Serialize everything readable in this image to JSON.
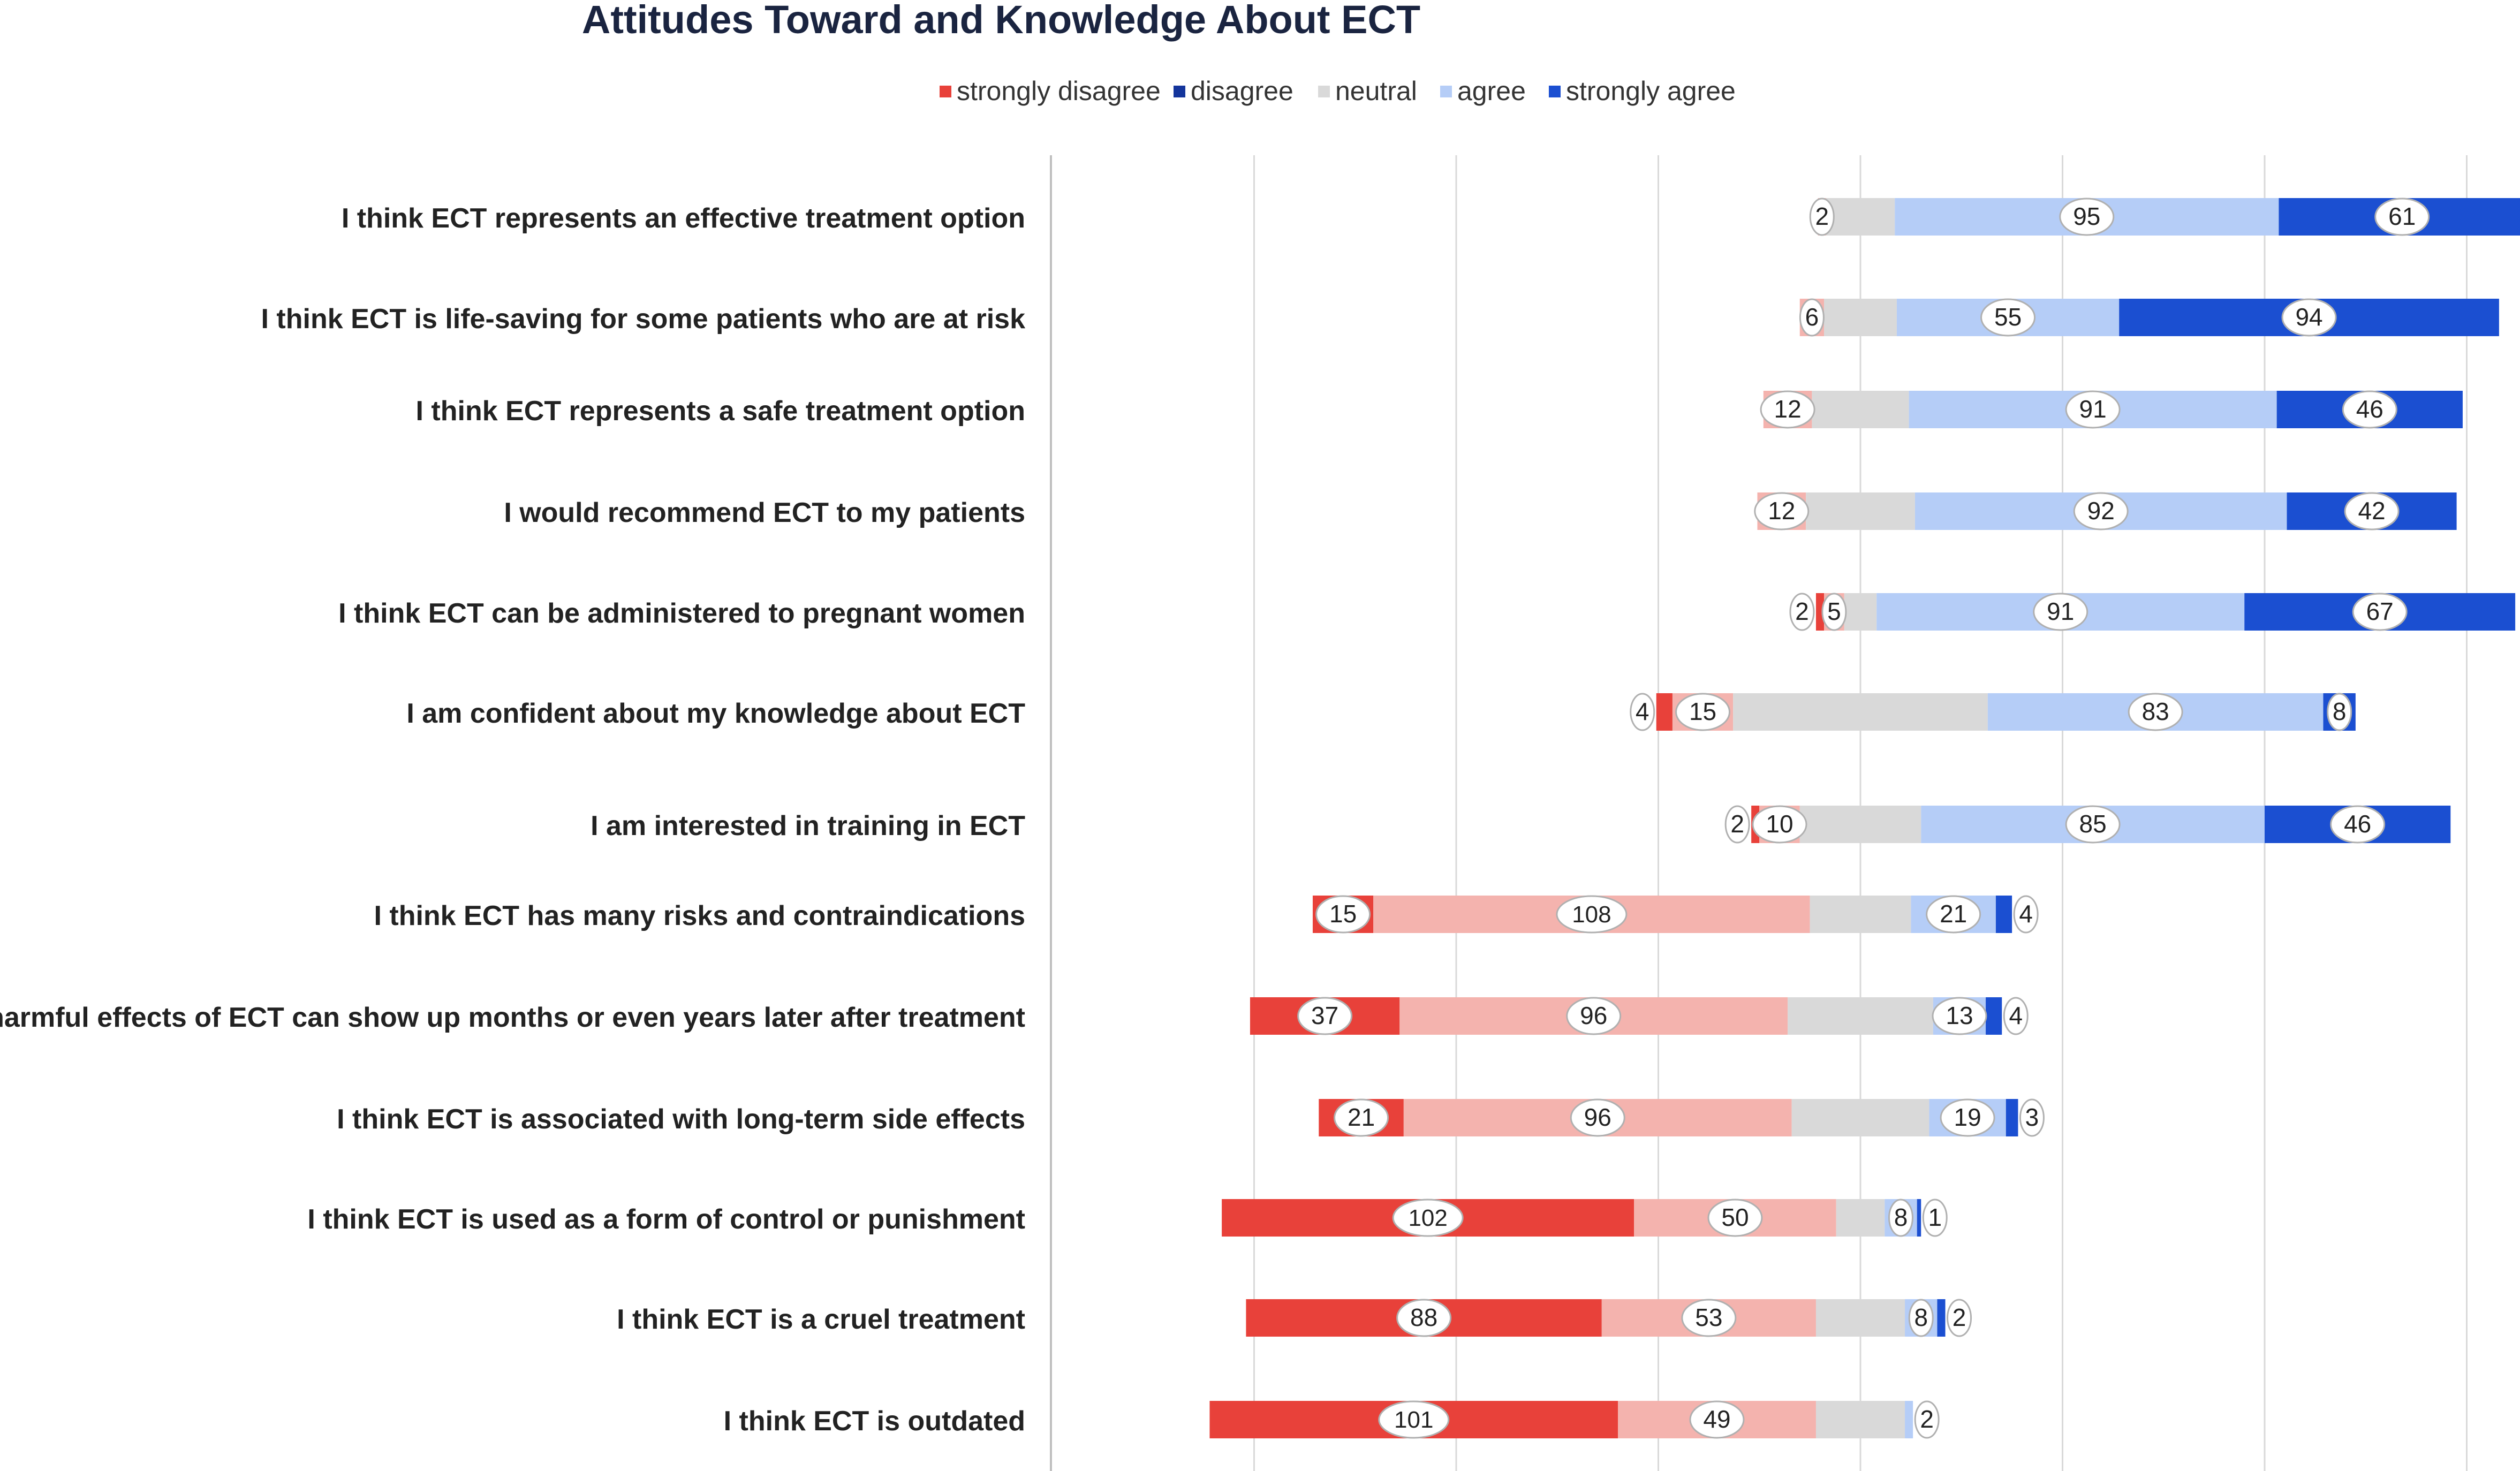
{
  "chart_data": {
    "type": "bar",
    "subtype": "diverging-stacked-horizontal",
    "title": "Attitudes Toward and Knowledge About ECT",
    "xlabel": "",
    "ylabel": "",
    "grid": true,
    "legend_position": "top",
    "series": [
      {
        "name": "strongly disagree",
        "color": "#e8413a"
      },
      {
        "name": "disagree",
        "color": "#14359c"
      },
      {
        "name": "neutral",
        "color": "#d9d9d9"
      },
      {
        "name": "agree",
        "color": "#b5cdf7"
      },
      {
        "name": "strongly agree",
        "color": "#1b4fd1"
      }
    ],
    "plot_series": [
      {
        "name": "strongly disagree",
        "color": "#e8413a"
      },
      {
        "name": "disagree",
        "color": "#f4b3ae"
      },
      {
        "name": "neutral",
        "color": "#d9d9d9"
      },
      {
        "name": "agree",
        "color": "#b5cdf7"
      },
      {
        "name": "strongly agree",
        "color": "#1b4fd1"
      }
    ],
    "categories": [
      "I think ECT represents an effective treatment option",
      "I think ECT is life-saving for some patients who are at risk",
      "I think ECT represents a safe treatment option",
      "I would recommend ECT to my patients",
      "I think ECT can be administered to pregnant women",
      "I am confident about my knowledge about ECT",
      "I am interested in training in ECT",
      "I think ECT has many risks and contraindications",
      "I think harmful effects of ECT can show up months or even years later after treatment",
      "I think ECT is associated with long-term side effects",
      "I think ECT is used as a form of control or punishment",
      "I think ECT is a cruel treatment",
      "I think ECT is outdated"
    ],
    "rows": [
      {
        "values": [
          0,
          2,
          17,
          95,
          61
        ],
        "labels": [
          "",
          "2",
          "",
          "95",
          "61"
        ]
      },
      {
        "values": [
          0,
          6,
          18,
          55,
          94
        ],
        "labels": [
          "",
          "6",
          "",
          "55",
          "94"
        ]
      },
      {
        "values": [
          0,
          12,
          24,
          91,
          46
        ],
        "labels": [
          "",
          "12",
          "",
          "91",
          "46"
        ]
      },
      {
        "values": [
          0,
          12,
          27,
          92,
          42
        ],
        "labels": [
          "",
          "12",
          "",
          "92",
          "42"
        ]
      },
      {
        "values": [
          2,
          5,
          8,
          91,
          67
        ],
        "labels": [
          "2",
          "5",
          "",
          "91",
          "67"
        ]
      },
      {
        "values": [
          4,
          15,
          63,
          83,
          8
        ],
        "labels": [
          "4",
          "15",
          "",
          "83",
          "8"
        ]
      },
      {
        "values": [
          2,
          10,
          30,
          85,
          46
        ],
        "labels": [
          "2",
          "10",
          "",
          "85",
          "46"
        ]
      },
      {
        "values": [
          15,
          108,
          25,
          21,
          4
        ],
        "labels": [
          "15",
          "108",
          "",
          "21",
          "4"
        ]
      },
      {
        "values": [
          37,
          96,
          36,
          13,
          4
        ],
        "labels": [
          "37",
          "96",
          "",
          "13",
          "4"
        ]
      },
      {
        "values": [
          21,
          96,
          34,
          19,
          3
        ],
        "labels": [
          "21",
          "96",
          "",
          "19",
          "3"
        ]
      },
      {
        "values": [
          102,
          50,
          12,
          8,
          1
        ],
        "labels": [
          "102",
          "50",
          "",
          "8",
          "1"
        ]
      },
      {
        "values": [
          88,
          53,
          22,
          8,
          2
        ],
        "labels": [
          "88",
          "53",
          "",
          "8",
          "2"
        ]
      },
      {
        "values": [
          101,
          49,
          22,
          2,
          0
        ],
        "labels": [
          "101",
          "49",
          "",
          "2",
          ""
        ]
      }
    ],
    "xlim": [
      -160,
      165
    ],
    "gridlines": [
      -150,
      -100,
      -50,
      0,
      50,
      100,
      150
    ]
  }
}
